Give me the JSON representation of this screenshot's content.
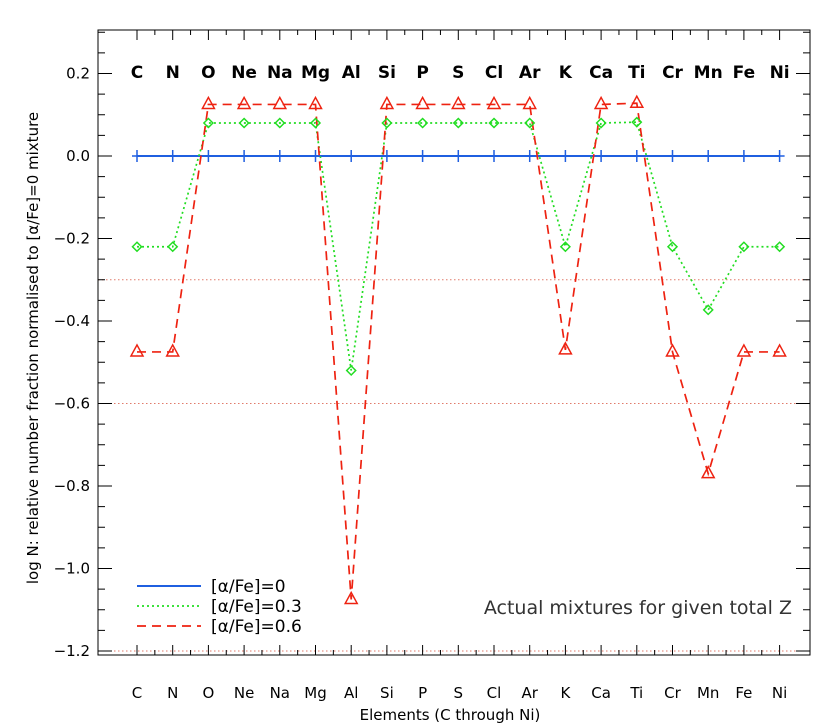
{
  "chart_data": {
    "type": "line",
    "categories": [
      "C",
      "N",
      "O",
      "Ne",
      "Na",
      "Mg",
      "Al",
      "Si",
      "P",
      "S",
      "Cl",
      "Ar",
      "K",
      "Ca",
      "Ti",
      "Cr",
      "Mn",
      "Fe",
      "Ni"
    ],
    "top_labels": [
      "C",
      "N",
      "O",
      "Ne",
      "Na",
      "Mg",
      "Al",
      "Si",
      "P",
      "S",
      "Cl",
      "Ar",
      "K",
      "Ca",
      "Ti",
      "Cr",
      "Mn",
      "Fe",
      "Ni"
    ],
    "xlabel": "Elements (C through Ni)",
    "ylabel": "log N: relative number fraction normalised to [α/Fe]=0 mixture",
    "ylim": [
      -1.26,
      0.3
    ],
    "yticks": [
      0.2,
      0.0,
      -0.2,
      -0.4,
      -0.6,
      -0.8,
      -1.0,
      -1.2
    ],
    "ytick_labels": [
      "0.2",
      "0.0",
      "−0.2",
      "−0.4",
      "−0.6",
      "−0.8",
      "−1.0",
      "−1.2"
    ],
    "reference_lines": [
      -0.3,
      -0.6,
      -1.2
    ],
    "annotation": "Actual mixtures for given total Z",
    "legend_position": "bottom-left",
    "series": [
      {
        "name": "[α/Fe]=0",
        "color": "#1f5fe0",
        "marker": "plus",
        "values": [
          0,
          0,
          0,
          0,
          0,
          0,
          0,
          0,
          0,
          0,
          0,
          0,
          0,
          0,
          0,
          0,
          0,
          0,
          0
        ]
      },
      {
        "name": "[α/Fe]=0.3",
        "color": "#22dd22",
        "marker": "diamond",
        "values": [
          -0.22,
          -0.22,
          0.08,
          0.08,
          0.08,
          0.08,
          -0.52,
          0.08,
          0.08,
          0.08,
          0.08,
          0.08,
          -0.22,
          0.08,
          0.082,
          -0.22,
          -0.373,
          -0.22,
          -0.22
        ]
      },
      {
        "name": "[α/Fe]=0.6",
        "color": "#ee2211",
        "marker": "triangle",
        "values": [
          -0.475,
          -0.475,
          0.125,
          0.125,
          0.125,
          0.125,
          -1.075,
          0.125,
          0.125,
          0.125,
          0.125,
          0.125,
          -0.47,
          0.125,
          0.128,
          -0.475,
          -0.77,
          -0.475,
          -0.475
        ]
      }
    ]
  }
}
